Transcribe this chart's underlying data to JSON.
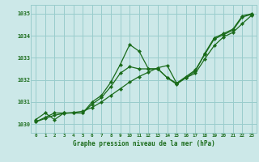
{
  "title": "Graphe pression niveau de la mer (hPa)",
  "bg_color": "#cce8e8",
  "grid_color": "#99cccc",
  "line_color": "#1a6b1a",
  "x_ticks": [
    0,
    1,
    2,
    3,
    4,
    5,
    6,
    7,
    8,
    9,
    10,
    11,
    12,
    13,
    14,
    15,
    16,
    17,
    18,
    19,
    20,
    21,
    22,
    23
  ],
  "y_ticks": [
    1030,
    1031,
    1032,
    1033,
    1034,
    1035
  ],
  "ylim": [
    1029.6,
    1035.4
  ],
  "xlim": [
    -0.5,
    23.5
  ],
  "series1": [
    1030.2,
    1030.5,
    1030.2,
    1030.5,
    1030.5,
    1030.5,
    1031.0,
    1031.3,
    1031.9,
    1032.7,
    1033.6,
    1033.3,
    1032.5,
    1032.5,
    1032.1,
    1031.8,
    1032.1,
    1032.4,
    1033.2,
    1033.9,
    1034.1,
    1034.3,
    1034.9,
    1035.0
  ],
  "series2": [
    1030.1,
    1030.3,
    1030.5,
    1030.5,
    1030.5,
    1030.5,
    1030.9,
    1031.2,
    1031.7,
    1032.3,
    1032.6,
    1032.5,
    1032.5,
    1032.5,
    1032.1,
    1031.85,
    1032.15,
    1032.45,
    1033.15,
    1033.85,
    1034.05,
    1034.25,
    1034.85,
    1034.97
  ],
  "series3": [
    1030.1,
    1030.25,
    1030.4,
    1030.48,
    1030.52,
    1030.58,
    1030.75,
    1031.0,
    1031.3,
    1031.6,
    1031.9,
    1032.15,
    1032.35,
    1032.55,
    1032.65,
    1031.85,
    1032.1,
    1032.3,
    1032.95,
    1033.55,
    1033.95,
    1034.15,
    1034.55,
    1034.93
  ]
}
